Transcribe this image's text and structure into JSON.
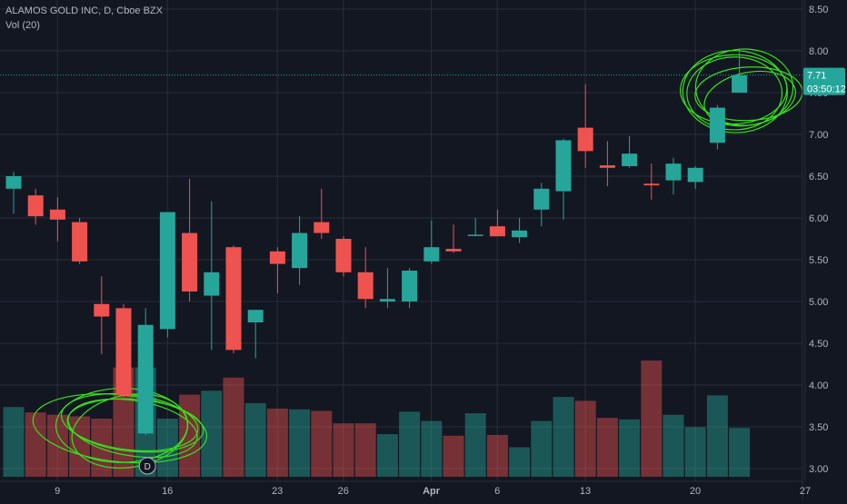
{
  "legend": {
    "symbol_line": "ALAMOS GOLD INC, D, Cboe BZX",
    "volume_line": "Vol (20)"
  },
  "price_marker": {
    "value": "7.71",
    "countdown": "03:50:12"
  },
  "event_marker": {
    "label": "D"
  },
  "colors": {
    "up": "#26a69a",
    "down": "#ef5350",
    "background": "#131722",
    "grid": "#2a2e39",
    "annotation": "#39e01b",
    "text": "#b2b5be"
  },
  "chart_data": {
    "type": "candlestick",
    "title": "ALAMOS GOLD INC, D, Cboe BZX",
    "yaxis": {
      "ticks": [
        "3.00",
        "3.50",
        "4.00",
        "4.50",
        "5.00",
        "5.50",
        "6.00",
        "6.50",
        "7.00",
        "7.50",
        "8.00",
        "8.50"
      ],
      "ylim": [
        2.85,
        8.6
      ]
    },
    "xaxis": {
      "tick_labels": [
        {
          "label": "9",
          "index": 1
        },
        {
          "label": "16",
          "index": 6
        },
        {
          "label": "23",
          "index": 11
        },
        {
          "label": "26",
          "index": 14
        },
        {
          "label": "Apr",
          "index": 18
        },
        {
          "label": "6",
          "index": 21
        },
        {
          "label": "13",
          "index": 25
        },
        {
          "label": "20",
          "index": 30
        },
        {
          "label": "27",
          "index": 35
        }
      ]
    },
    "ohlc": [
      {
        "o": 6.35,
        "h": 6.55,
        "l": 6.05,
        "c": 6.5
      },
      {
        "o": 6.27,
        "h": 6.35,
        "l": 5.92,
        "c": 6.02
      },
      {
        "o": 6.1,
        "h": 6.25,
        "l": 5.72,
        "c": 5.98
      },
      {
        "o": 5.95,
        "h": 6.0,
        "l": 5.45,
        "c": 5.48
      },
      {
        "o": 4.97,
        "h": 5.3,
        "l": 4.37,
        "c": 4.82
      },
      {
        "o": 4.92,
        "h": 4.97,
        "l": 3.85,
        "c": 3.88
      },
      {
        "o": 3.42,
        "h": 4.92,
        "l": 3.4,
        "c": 4.72
      },
      {
        "o": 4.67,
        "h": 6.07,
        "l": 4.57,
        "c": 6.07
      },
      {
        "o": 5.82,
        "h": 6.47,
        "l": 5.0,
        "c": 5.12
      },
      {
        "o": 5.07,
        "h": 6.2,
        "l": 4.42,
        "c": 5.35
      },
      {
        "o": 5.65,
        "h": 5.67,
        "l": 4.38,
        "c": 4.42
      },
      {
        "o": 4.75,
        "h": 4.9,
        "l": 4.32,
        "c": 4.9
      },
      {
        "o": 5.6,
        "h": 5.65,
        "l": 5.1,
        "c": 5.45
      },
      {
        "o": 5.4,
        "h": 6.02,
        "l": 5.2,
        "c": 5.82
      },
      {
        "o": 5.95,
        "h": 6.35,
        "l": 5.75,
        "c": 5.82
      },
      {
        "o": 5.75,
        "h": 5.78,
        "l": 5.3,
        "c": 5.35
      },
      {
        "o": 5.35,
        "h": 5.65,
        "l": 4.92,
        "c": 5.03
      },
      {
        "o": 5.0,
        "h": 5.4,
        "l": 4.92,
        "c": 5.03
      },
      {
        "o": 5.0,
        "h": 5.4,
        "l": 4.92,
        "c": 5.37
      },
      {
        "o": 5.48,
        "h": 5.97,
        "l": 5.45,
        "c": 5.65
      },
      {
        "o": 5.63,
        "h": 5.92,
        "l": 5.58,
        "c": 5.6
      },
      {
        "o": 5.8,
        "h": 6.0,
        "l": 5.78,
        "c": 5.8
      },
      {
        "o": 5.9,
        "h": 6.1,
        "l": 5.78,
        "c": 5.78
      },
      {
        "o": 5.77,
        "h": 6.0,
        "l": 5.7,
        "c": 5.85
      },
      {
        "o": 6.1,
        "h": 6.42,
        "l": 5.9,
        "c": 6.35
      },
      {
        "o": 6.32,
        "h": 6.95,
        "l": 5.98,
        "c": 6.93
      },
      {
        "o": 7.08,
        "h": 7.6,
        "l": 6.6,
        "c": 6.8
      },
      {
        "o": 6.63,
        "h": 6.92,
        "l": 6.38,
        "c": 6.6
      },
      {
        "o": 6.62,
        "h": 6.98,
        "l": 6.6,
        "c": 6.77
      },
      {
        "o": 6.41,
        "h": 6.65,
        "l": 6.22,
        "c": 6.39
      },
      {
        "o": 6.45,
        "h": 6.72,
        "l": 6.28,
        "c": 6.65
      },
      {
        "o": 6.43,
        "h": 6.62,
        "l": 6.35,
        "c": 6.6
      },
      {
        "o": 6.9,
        "h": 7.35,
        "l": 6.82,
        "c": 7.32
      },
      {
        "o": 7.5,
        "h": 8.03,
        "l": 7.5,
        "c": 7.71
      }
    ],
    "volume": {
      "unit": "relative",
      "values": [
        9.0,
        8.3,
        8.0,
        7.8,
        7.5,
        14.1,
        14.1,
        7.5,
        10.6,
        11.1,
        12.8,
        9.5,
        8.8,
        8.7,
        8.5,
        6.9,
        6.9,
        5.5,
        8.4,
        7.2,
        5.3,
        8.2,
        5.4,
        3.8,
        7.2,
        10.3,
        9.8,
        7.6,
        7.4,
        15.0,
        8.0,
        6.4,
        10.5,
        6.3
      ]
    },
    "current_price": 7.71,
    "countdown": "03:50:12",
    "event_marker": {
      "label": "D",
      "index": 6
    }
  }
}
